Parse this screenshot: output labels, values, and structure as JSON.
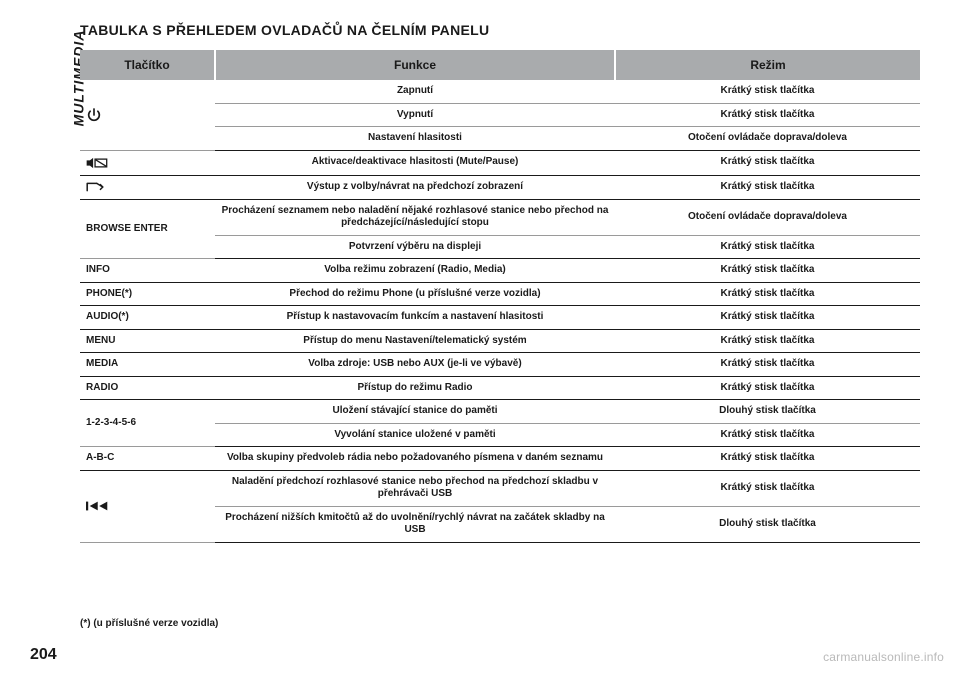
{
  "side_tab": "MULTIMEDIA",
  "heading": "TABULKA S PŘEHLEDEM OVLADAČŮ NA ČELNÍM PANELU",
  "headers": {
    "col1": "Tlačítko",
    "col2": "Funkce",
    "col3": "Režim"
  },
  "rows": [
    {
      "btn_icon": "power",
      "btn_rowspan": 3,
      "func": "Zapnutí",
      "mode": "Krátký stisk tlačítka",
      "sep": "thin"
    },
    {
      "func": "Vypnutí",
      "mode": "Krátký stisk tlačítka",
      "sep": "thin"
    },
    {
      "func": "Nastavení hlasitosti",
      "mode": "Otočení ovládače doprava/doleva",
      "sep": "sep"
    },
    {
      "btn_icon": "mute",
      "func": "Aktivace/deaktivace hlasitosti (Mute/Pause)",
      "mode": "Krátký stisk tlačítka",
      "sep": "sep"
    },
    {
      "btn_icon": "exit",
      "func": "Výstup z volby/návrat na předchozí zobrazení",
      "mode": "Krátký stisk tlačítka",
      "sep": "sep"
    },
    {
      "btn": "BROWSE ENTER",
      "btn_rowspan": 2,
      "func": "Procházení seznamem nebo naladění nějaké rozhlasové stanice nebo přechod na předcházející/následující stopu",
      "mode": "Otočení ovládače doprava/doleva",
      "sep": "thin"
    },
    {
      "func": "Potvrzení výběru na displeji",
      "mode": "Krátký stisk tlačítka",
      "sep": "sep"
    },
    {
      "btn": "INFO",
      "func": "Volba režimu zobrazení (Radio, Media)",
      "mode": "Krátký stisk tlačítka",
      "sep": "sep"
    },
    {
      "btn": "PHONE(*)",
      "func": "Přechod do režimu Phone (u příslušné verze vozidla)",
      "mode": "Krátký stisk tlačítka",
      "sep": "sep"
    },
    {
      "btn": "AUDIO(*)",
      "func": "Přístup k nastavovacím funkcím a nastavení hlasitosti",
      "mode": "Krátký stisk tlačítka",
      "sep": "sep"
    },
    {
      "btn": "MENU",
      "func": "Přístup do menu Nastavení/telematický systém",
      "mode": "Krátký stisk tlačítka",
      "sep": "sep"
    },
    {
      "btn": "MEDIA",
      "func": "Volba zdroje: USB nebo AUX (je-li ve výbavě)",
      "mode": "Krátký stisk tlačítka",
      "sep": "sep"
    },
    {
      "btn": "RADIO",
      "func": "Přístup do režimu Radio",
      "mode": "Krátký stisk tlačítka",
      "sep": "sep"
    },
    {
      "btn": "1-2-3-4-5-6",
      "btn_rowspan": 2,
      "func": "Uložení stávající stanice do paměti",
      "mode": "Dlouhý stisk tlačítka",
      "sep": "thin"
    },
    {
      "func": "Vyvolání stanice uložené v paměti",
      "mode": "Krátký stisk tlačítka",
      "sep": "sep"
    },
    {
      "btn": "A-B-C",
      "func": "Volba skupiny předvoleb rádia nebo požadovaného písmena v daném seznamu",
      "mode": "Krátký stisk tlačítka",
      "sep": "sep"
    },
    {
      "btn_icon": "prev",
      "btn_rowspan": 2,
      "func": "Naladění předchozí rozhlasové stanice nebo přechod na předchozí skladbu v přehrávači USB",
      "mode": "Krátký stisk tlačítka",
      "sep": "thin"
    },
    {
      "func": "Procházení nižších kmitočtů až do uvolnění/rychlý návrat na začátek skladby na USB",
      "mode": "Dlouhý stisk tlačítka",
      "sep": "sep"
    }
  ],
  "footnote": "(*) (u příslušné verze vozidla)",
  "page_number": "204",
  "watermark": "carmanualsonline.info",
  "colors": {
    "header_bg": "#a9abad",
    "text": "#1a1a1a",
    "sep": "#1a1a1a",
    "thin": "#9a9a9a",
    "watermark": "#b9b9b9"
  }
}
